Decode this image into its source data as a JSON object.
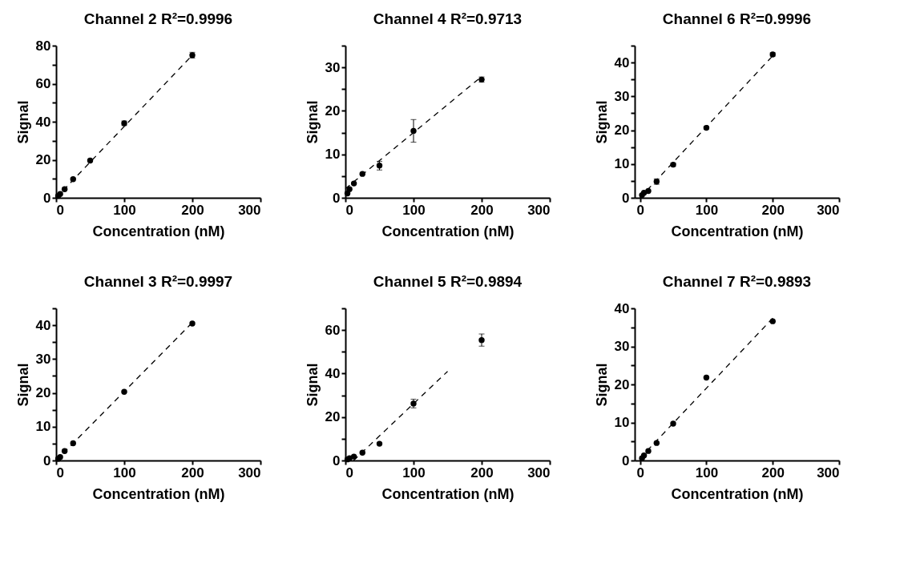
{
  "chart_data": [
    {
      "type": "scatter",
      "title": "Channel 2  R²=0.9996",
      "xlabel": "Concentration (nM)",
      "ylabel": "Signal",
      "xlim": [
        0,
        300
      ],
      "xticks": [
        0,
        100,
        200,
        300
      ],
      "ylim": [
        0,
        80
      ],
      "yticks": [
        0,
        {
          "value": 10,
          "label": null
        },
        20,
        {
          "value": 30,
          "label": null
        },
        40,
        {
          "value": 50,
          "label": null
        },
        60,
        {
          "value": 70,
          "label": null
        },
        80
      ],
      "grid": false,
      "series": [
        {
          "type": "scatter",
          "marker": "circle",
          "color": "#000000",
          "x": [
            3,
            6,
            12.5,
            25,
            50,
            100,
            200
          ],
          "values": [
            1,
            2,
            4.5,
            9.8,
            19.6,
            39.2,
            75
          ],
          "errors": [
            null,
            null,
            null,
            null,
            null,
            1.2,
            1.5
          ]
        },
        {
          "type": "line",
          "color": "#000000",
          "line_style": "dashed",
          "x": [
            0,
            200
          ],
          "values": [
            0,
            75
          ]
        }
      ]
    },
    {
      "type": "scatter",
      "title": "Channel 4  R²=0.9713",
      "xlabel": "Concentration (nM)",
      "ylabel": "Signal",
      "xlim": [
        0,
        300
      ],
      "xticks": [
        0,
        100,
        200,
        300
      ],
      "ylim": [
        0,
        35
      ],
      "yticks": [
        0,
        {
          "value": 5,
          "label": null
        },
        10,
        {
          "value": 15,
          "label": null
        },
        20,
        {
          "value": 25,
          "label": null
        },
        30,
        {
          "value": 35,
          "label": null
        }
      ],
      "grid": false,
      "series": [
        {
          "type": "scatter",
          "marker": "circle",
          "color": "#000000",
          "x": [
            3,
            6,
            12.5,
            25,
            50,
            100,
            200
          ],
          "values": [
            1,
            2,
            3.3,
            5.5,
            7.4,
            15.4,
            27.2
          ],
          "errors": [
            null,
            null,
            null,
            null,
            1,
            2.6,
            0.6
          ]
        },
        {
          "type": "line",
          "color": "#000000",
          "line_style": "dashed",
          "x": [
            0,
            200
          ],
          "values": [
            2.1,
            27.9
          ]
        }
      ]
    },
    {
      "type": "scatter",
      "title": "Channel 6 R²=0.9996",
      "xlabel": "Concentration (nM)",
      "ylabel": "Signal",
      "xlim": [
        -8,
        300
      ],
      "xticks": [
        0,
        100,
        200,
        300
      ],
      "ylim": [
        0,
        45
      ],
      "yticks": [
        0,
        {
          "value": 5,
          "label": null
        },
        10,
        {
          "value": 15,
          "label": null
        },
        20,
        {
          "value": 25,
          "label": null
        },
        30,
        {
          "value": 35,
          "label": null
        },
        40,
        {
          "value": 45,
          "label": null
        }
      ],
      "grid": false,
      "series": [
        {
          "type": "scatter",
          "marker": "circle",
          "color": "#000000",
          "x": [
            3,
            6,
            12.5,
            25,
            50,
            100,
            200
          ],
          "values": [
            0.8,
            1.5,
            2,
            4.8,
            9.8,
            20.7,
            42.4
          ],
          "errors": [
            null,
            null,
            null,
            0.8,
            0.5,
            0.4,
            0.5
          ]
        },
        {
          "type": "line",
          "color": "#000000",
          "line_style": "dashed",
          "x": [
            0,
            200
          ],
          "values": [
            0,
            42
          ]
        }
      ]
    },
    {
      "type": "scatter",
      "title": "Channel 3  R²=0.9997",
      "xlabel": "Concentration (nM)",
      "ylabel": "Signal",
      "xlim": [
        0,
        300
      ],
      "xticks": [
        0,
        100,
        200,
        300
      ],
      "ylim": [
        0,
        45
      ],
      "yticks": [
        0,
        {
          "value": 5,
          "label": null
        },
        10,
        {
          "value": 15,
          "label": null
        },
        20,
        {
          "value": 25,
          "label": null
        },
        30,
        {
          "value": 35,
          "label": null
        },
        40,
        {
          "value": 45,
          "label": null
        }
      ],
      "grid": false,
      "series": [
        {
          "type": "scatter",
          "marker": "circle",
          "color": "#000000",
          "x": [
            3,
            6,
            12.5,
            25,
            100,
            200
          ],
          "values": [
            0.5,
            1,
            2.8,
            5.1,
            20.3,
            40.5
          ]
        },
        {
          "type": "line",
          "color": "#000000",
          "line_style": "dashed",
          "x": [
            0,
            200
          ],
          "values": [
            0,
            40.8
          ]
        }
      ]
    },
    {
      "type": "scatter",
      "title": "Channel 5  R²=0.9894",
      "xlabel": "Concentration (nM)",
      "ylabel": "Signal",
      "xlim": [
        0,
        300
      ],
      "xticks": [
        0,
        100,
        200,
        300
      ],
      "ylim": [
        0,
        70
      ],
      "yticks": [
        0,
        {
          "value": 10,
          "label": null
        },
        20,
        {
          "value": 30,
          "label": null
        },
        40,
        {
          "value": 50,
          "label": null
        },
        60,
        {
          "value": 70,
          "label": null
        }
      ],
      "grid": false,
      "series": [
        {
          "type": "scatter",
          "marker": "circle",
          "color": "#000000",
          "x": [
            3,
            6,
            12.5,
            25,
            50,
            100,
            200
          ],
          "values": [
            0.5,
            1,
            1.8,
            3.6,
            7.7,
            26.2,
            55.4
          ],
          "errors": [
            null,
            null,
            null,
            null,
            null,
            2,
            2.8
          ]
        },
        {
          "type": "line",
          "color": "#000000",
          "line_style": "dashed",
          "x": [
            12,
            150
          ],
          "values": [
            0,
            41
          ]
        }
      ]
    },
    {
      "type": "scatter",
      "title": "Channel 7  R²=0.9893",
      "xlabel": "Concentration (nM)",
      "ylabel": "Signal",
      "xlim": [
        -8,
        300
      ],
      "xticks": [
        0,
        100,
        200,
        300
      ],
      "ylim": [
        0,
        40
      ],
      "yticks": [
        0,
        {
          "value": 5,
          "label": null
        },
        10,
        {
          "value": 15,
          "label": null
        },
        20,
        {
          "value": 25,
          "label": null
        },
        30,
        {
          "value": 35,
          "label": null
        },
        40
      ],
      "grid": false,
      "series": [
        {
          "type": "scatter",
          "marker": "circle",
          "color": "#000000",
          "x": [
            3,
            6,
            12.5,
            25,
            50,
            100,
            200
          ],
          "values": [
            0.6,
            1.3,
            2.5,
            4.6,
            9.7,
            21.8,
            36.6
          ]
        },
        {
          "type": "line",
          "color": "#000000",
          "line_style": "dashed",
          "x": [
            0,
            200
          ],
          "values": [
            0.6,
            37.4
          ]
        }
      ]
    }
  ]
}
